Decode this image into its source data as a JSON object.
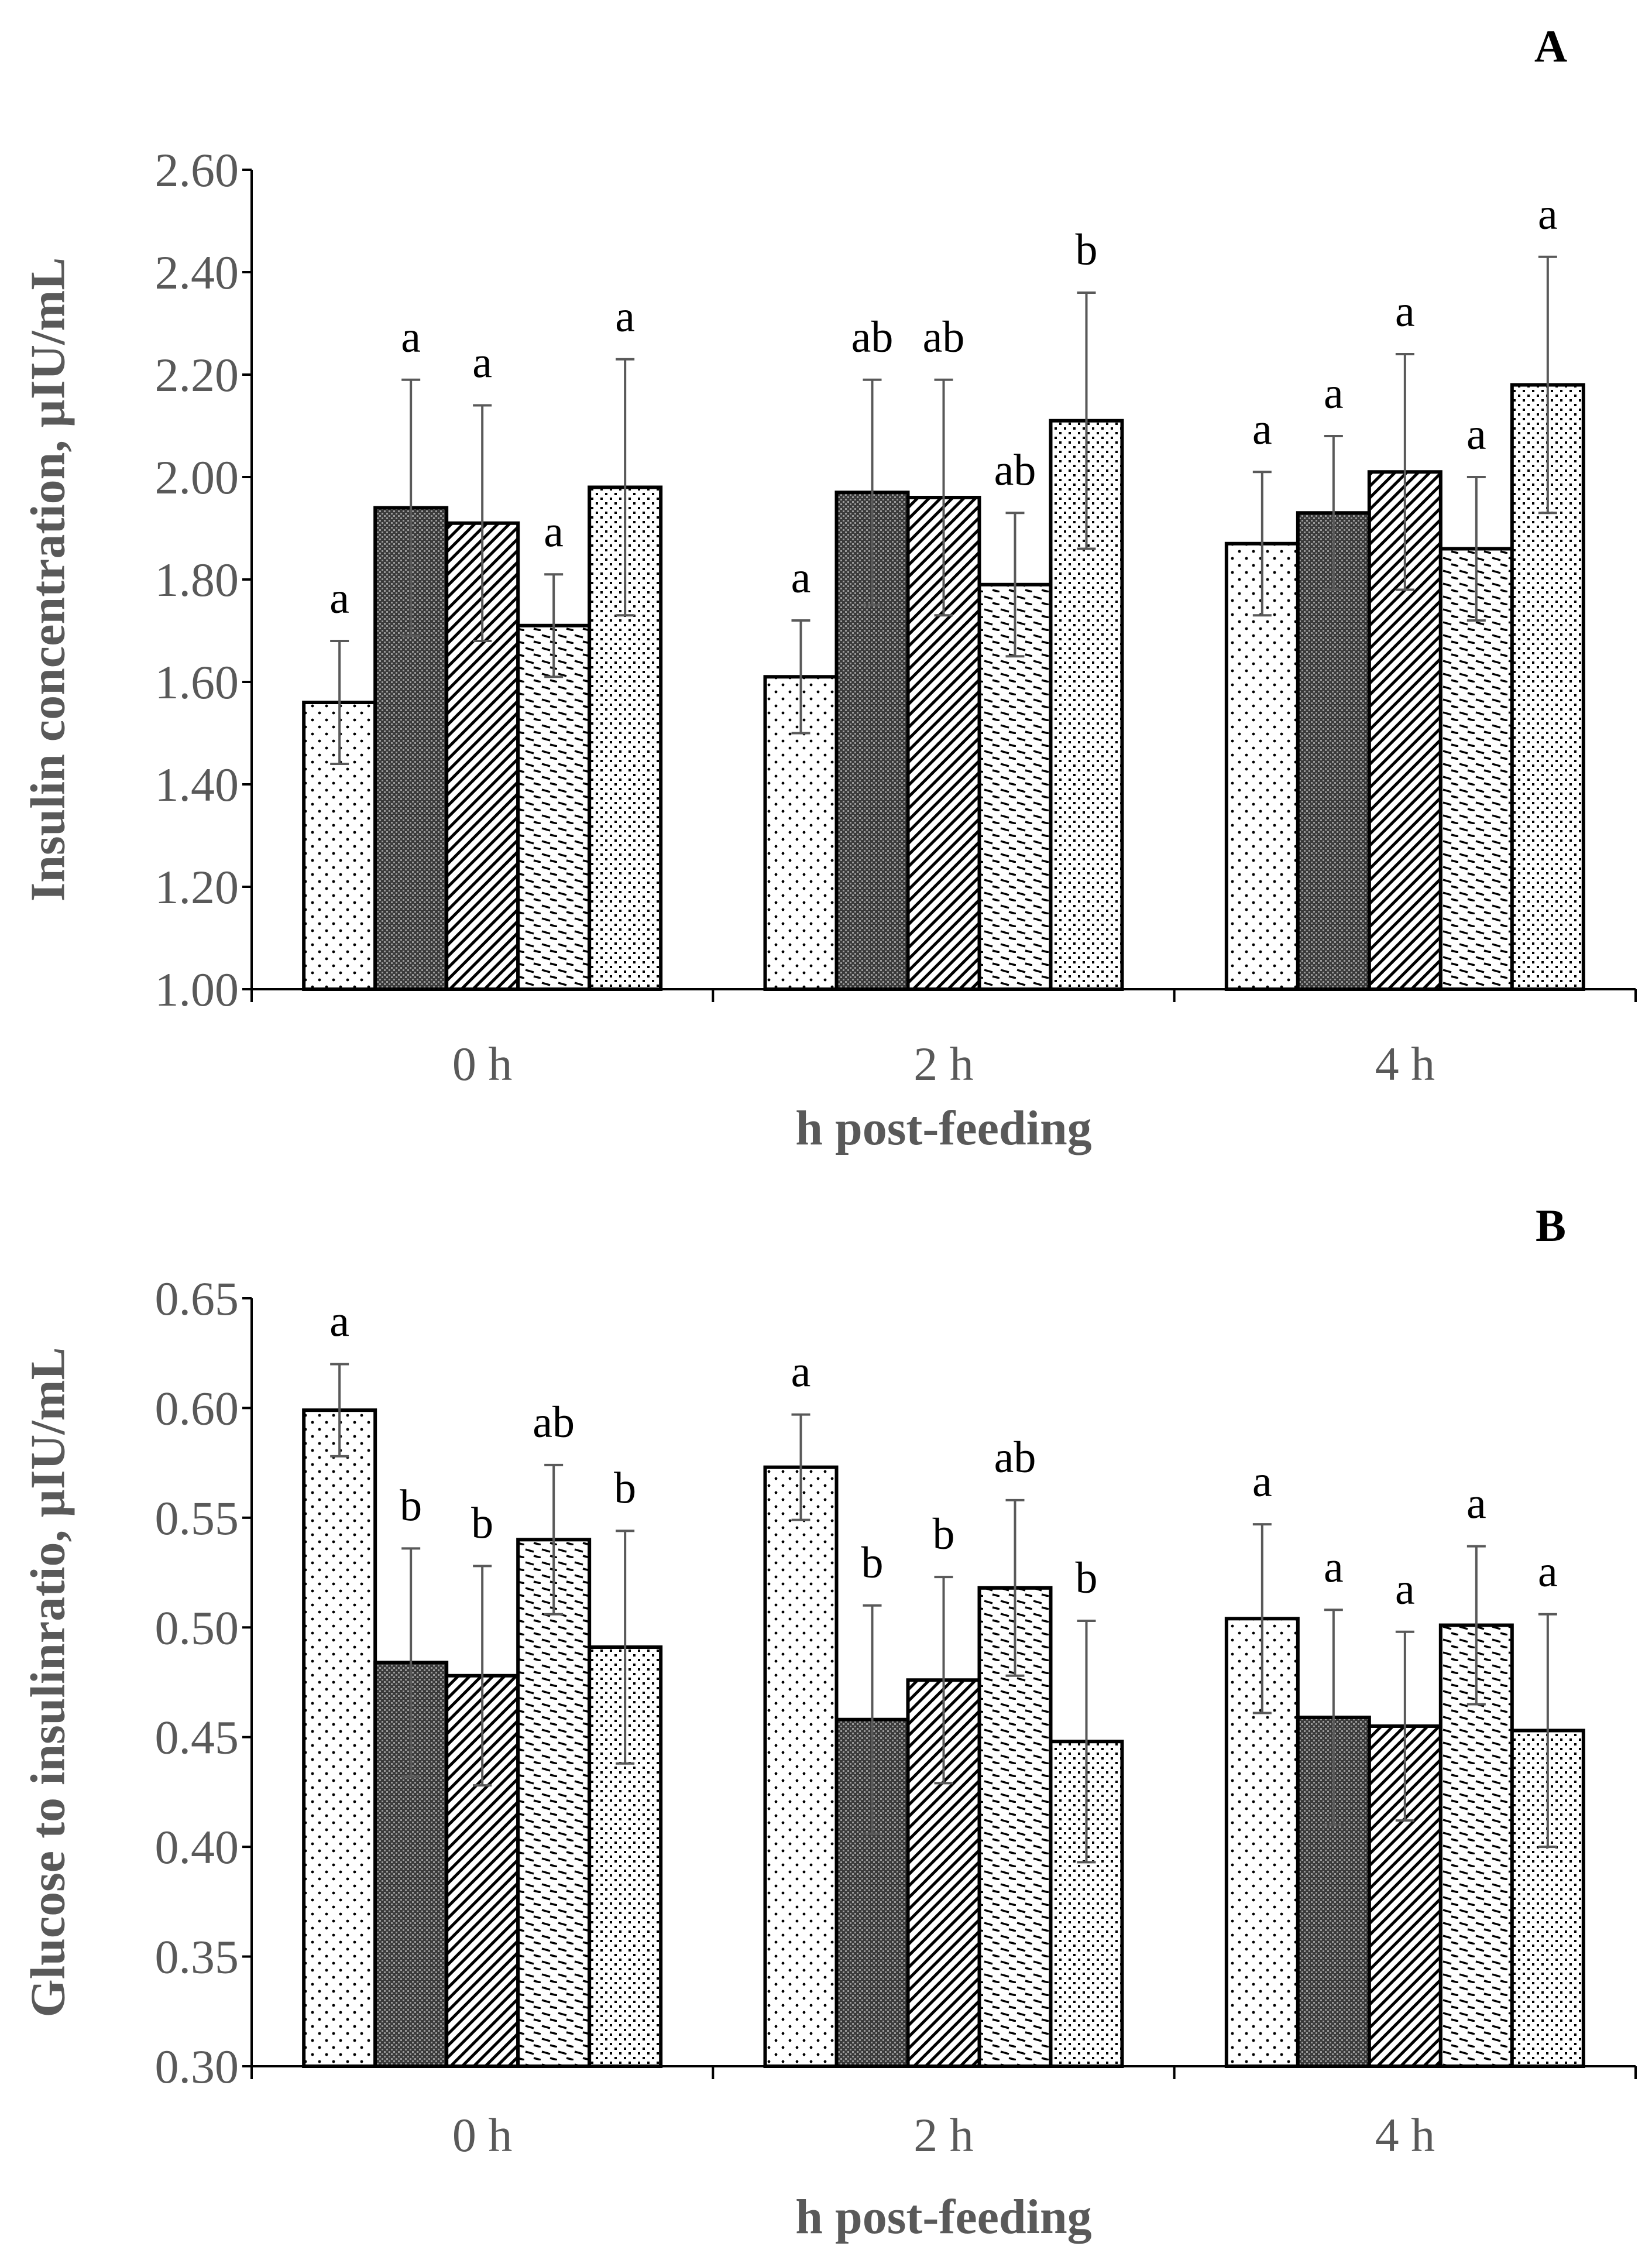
{
  "colors": {
    "bar_outline": "#000000",
    "error_bar": "#595959",
    "axis_line": "#000000",
    "tick_text": "#595959",
    "background": "#ffffff"
  },
  "chart_data": [
    {
      "type": "bar",
      "panel_label": "A",
      "title": "",
      "xlabel": "h post-feeding",
      "ylabel": "Insulin concentration, µIU/mL",
      "categories": [
        "0 h",
        "2 h",
        "4 h"
      ],
      "ylim": [
        1.0,
        2.6
      ],
      "ytick_step": 0.2,
      "yticks": [
        "1.00",
        "1.20",
        "1.40",
        "1.60",
        "1.80",
        "2.00",
        "2.20",
        "2.40",
        "2.60"
      ],
      "grid": false,
      "legend": "none",
      "series": [
        {
          "pattern": "sparse-dots",
          "values": [
            1.56,
            1.61,
            1.87
          ],
          "errors": [
            0.12,
            0.11,
            0.14
          ],
          "labels": [
            "a",
            "a",
            "a"
          ]
        },
        {
          "pattern": "dense-crosshatch",
          "values": [
            1.94,
            1.97,
            1.93
          ],
          "errors": [
            0.25,
            0.22,
            0.15
          ],
          "labels": [
            "a",
            "ab",
            "a"
          ]
        },
        {
          "pattern": "diagonal",
          "values": [
            1.91,
            1.96,
            2.01
          ],
          "errors": [
            0.23,
            0.23,
            0.23
          ],
          "labels": [
            "a",
            "ab",
            "a"
          ]
        },
        {
          "pattern": "horizontal-dashes",
          "values": [
            1.71,
            1.79,
            1.86
          ],
          "errors": [
            0.1,
            0.14,
            0.14
          ],
          "labels": [
            "a",
            "ab",
            "a"
          ]
        },
        {
          "pattern": "dotted-grid",
          "values": [
            1.98,
            2.11,
            2.18
          ],
          "errors": [
            0.25,
            0.25,
            0.25
          ],
          "labels": [
            "a",
            "b",
            "a"
          ]
        }
      ]
    },
    {
      "type": "bar",
      "panel_label": "B",
      "title": "",
      "xlabel": "h post-feeding",
      "ylabel": "Glucose to insulinratio, µIU/mL",
      "categories": [
        "0 h",
        "2 h",
        "4 h"
      ],
      "ylim": [
        0.3,
        0.65
      ],
      "ytick_step": 0.05,
      "yticks": [
        "0.30",
        "0.35",
        "0.40",
        "0.45",
        "0.50",
        "0.55",
        "0.60",
        "0.65"
      ],
      "grid": false,
      "legend": "none",
      "series": [
        {
          "pattern": "sparse-dots",
          "values": [
            0.599,
            0.573,
            0.504
          ],
          "errors": [
            0.021,
            0.024,
            0.043
          ],
          "labels": [
            "a",
            "a",
            "a"
          ]
        },
        {
          "pattern": "dense-crosshatch",
          "values": [
            0.484,
            0.458,
            0.459
          ],
          "errors": [
            0.052,
            0.052,
            0.049
          ],
          "labels": [
            "b",
            "b",
            "a"
          ]
        },
        {
          "pattern": "diagonal",
          "values": [
            0.478,
            0.476,
            0.455
          ],
          "errors": [
            0.05,
            0.047,
            0.043
          ],
          "labels": [
            "b",
            "b",
            "a"
          ]
        },
        {
          "pattern": "horizontal-dashes",
          "values": [
            0.54,
            0.518,
            0.501
          ],
          "errors": [
            0.034,
            0.04,
            0.036
          ],
          "labels": [
            "ab",
            "ab",
            "a"
          ]
        },
        {
          "pattern": "dotted-grid",
          "values": [
            0.491,
            0.448,
            0.453
          ],
          "errors": [
            0.053,
            0.055,
            0.053
          ],
          "labels": [
            "b",
            "b",
            "a"
          ]
        }
      ]
    }
  ]
}
